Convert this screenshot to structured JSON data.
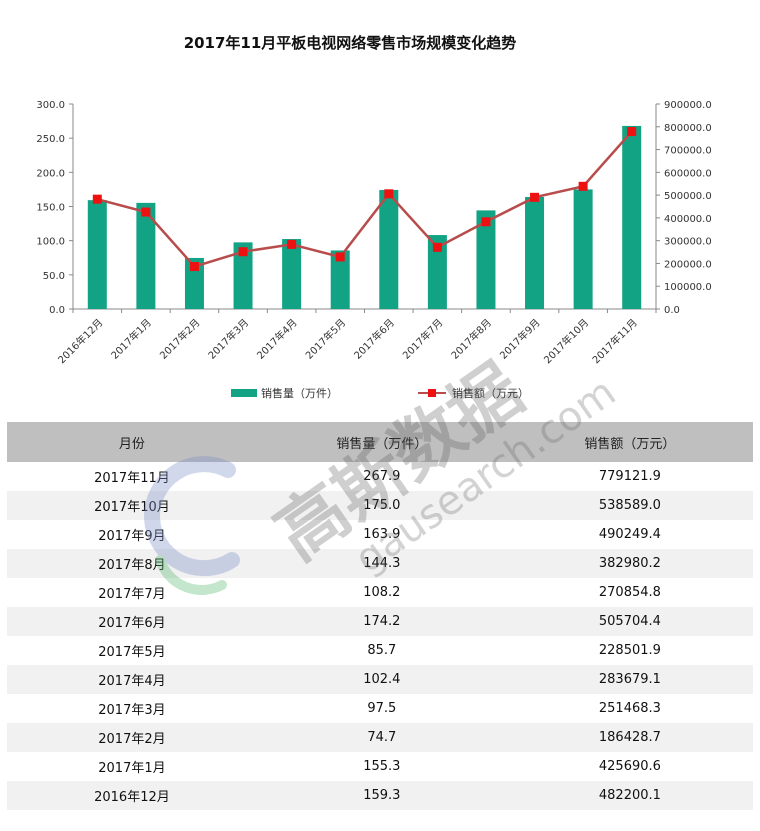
{
  "chart_data": {
    "type": "bar+line",
    "title": "2017年11月平板电视网络零售市场规模变化趋势",
    "categories": [
      "2016年12月",
      "2017年1月",
      "2017年2月",
      "2017年3月",
      "2017年4月",
      "2017年5月",
      "2017年6月",
      "2017年7月",
      "2017年8月",
      "2017年9月",
      "2017年10月",
      "2017年11月"
    ],
    "series": [
      {
        "name": "销售量（万件）",
        "type": "bar",
        "axis": "left",
        "color": "#12a384",
        "values": [
          159.3,
          155.3,
          74.7,
          97.5,
          102.4,
          85.7,
          174.2,
          108.2,
          144.3,
          163.9,
          175.0,
          267.9
        ]
      },
      {
        "name": "销售额（万元）",
        "type": "line",
        "axis": "right",
        "color": "#b84c4c",
        "marker_color": "#ee1111",
        "values": [
          482200.1,
          425690.6,
          186428.7,
          251468.3,
          283679.1,
          228501.9,
          505704.4,
          270854.8,
          382980.2,
          490249.4,
          538589.0,
          779121.9
        ]
      }
    ],
    "ylim_left": [
      0,
      300
    ],
    "ylim_right": [
      0,
      900000
    ],
    "yticks_left": [
      "0.0",
      "50.0",
      "100.0",
      "150.0",
      "200.0",
      "250.0",
      "300.0"
    ],
    "yticks_right": [
      "0.0",
      "100000.0",
      "200000.0",
      "300000.0",
      "400000.0",
      "500000.0",
      "600000.0",
      "700000.0",
      "800000.0",
      "900000.0"
    ],
    "legend_position": "bottom",
    "grid": false
  },
  "table": {
    "headers": [
      "月份",
      "销售量（万件）",
      "销售额（万元）"
    ],
    "rows": [
      [
        "2017年11月",
        "267.9",
        "779121.9"
      ],
      [
        "2017年10月",
        "175.0",
        "538589.0"
      ],
      [
        "2017年9月",
        "163.9",
        "490249.4"
      ],
      [
        "2017年8月",
        "144.3",
        "382980.2"
      ],
      [
        "2017年7月",
        "108.2",
        "270854.8"
      ],
      [
        "2017年6月",
        "174.2",
        "505704.4"
      ],
      [
        "2017年5月",
        "85.7",
        "228501.9"
      ],
      [
        "2017年4月",
        "102.4",
        "283679.1"
      ],
      [
        "2017年3月",
        "97.5",
        "251468.3"
      ],
      [
        "2017年2月",
        "74.7",
        "186428.7"
      ],
      [
        "2017年1月",
        "155.3",
        "425690.6"
      ],
      [
        "2016年12月",
        "159.3",
        "482200.1"
      ]
    ]
  },
  "watermark": {
    "brand": "高斯数据",
    "url": "gausearch.com"
  }
}
